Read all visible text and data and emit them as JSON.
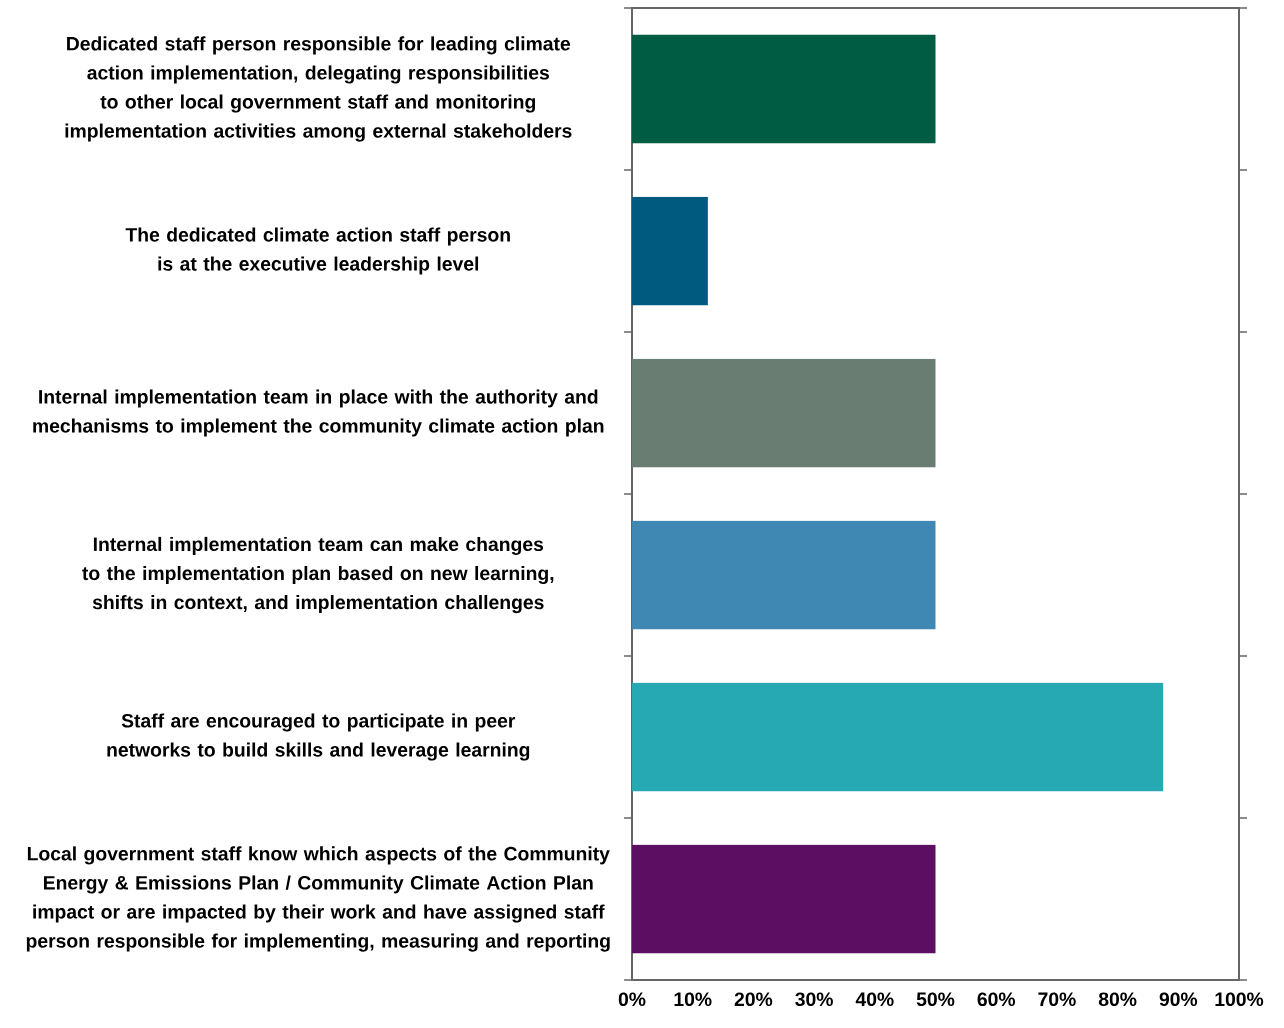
{
  "chart_data": {
    "type": "bar",
    "orientation": "horizontal",
    "categories": [
      "Dedicated staff person responsible for leading climate action implementation, delegating responsibilities to other local government staff and monitoring implementation activities among external stakeholders",
      "The dedicated climate action staff person is at the executive leadership level",
      "Internal implementation team in place with the authority and mechanisms to implement the community climate action plan",
      "Internal implementation team can make changes to the implementation plan based on new learning, shifts in context, and implementation challenges",
      "Staff are encouraged to participate in peer networks to build skills and leverage learning",
      "Local government staff know which aspects of the Community Energy & Emissions Plan / Community Climate Action Plan impact or are impacted by their work and have assigned staff person responsible for implementing, measuring and reporting"
    ],
    "values": [
      50,
      12.5,
      50,
      50,
      87.5,
      50
    ],
    "colors": [
      "#005c42",
      "#005a80",
      "#6a7d72",
      "#4088b4",
      "#27a9b3",
      "#5c0f62"
    ],
    "xlim": [
      0,
      100
    ],
    "xticks": [
      {
        "value": 0,
        "label": "0%"
      },
      {
        "value": 10,
        "label": "10%"
      },
      {
        "value": 20,
        "label": "20%"
      },
      {
        "value": 30,
        "label": "30%"
      },
      {
        "value": 40,
        "label": "40%"
      },
      {
        "value": 50,
        "label": "50%"
      },
      {
        "value": 60,
        "label": "60%"
      },
      {
        "value": 70,
        "label": "70%"
      },
      {
        "value": 80,
        "label": "80%"
      },
      {
        "value": 90,
        "label": "90%"
      },
      {
        "value": 100,
        "label": "100%"
      }
    ]
  }
}
